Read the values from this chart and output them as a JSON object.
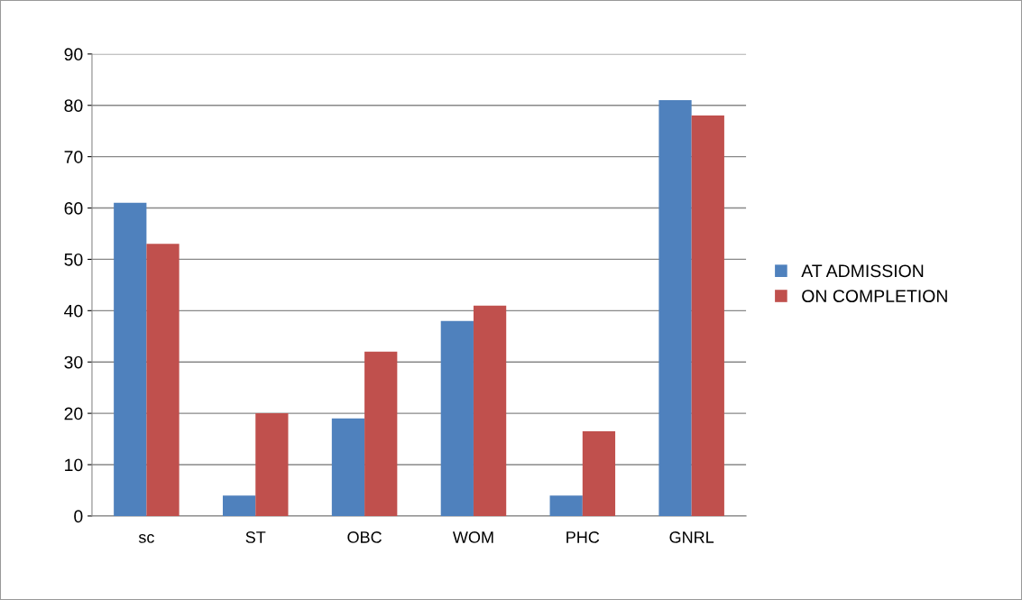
{
  "chart_data": {
    "type": "bar",
    "categories": [
      "sc",
      "ST",
      "OBC",
      "WOM",
      "PHC",
      "GNRL"
    ],
    "series": [
      {
        "name": "AT ADMISSION",
        "color": "#4f81bd",
        "values": [
          61,
          4,
          19,
          38,
          4,
          81
        ]
      },
      {
        "name": "ON COMPLETION",
        "color": "#c0504d",
        "values": [
          53,
          20,
          32,
          41,
          16.5,
          78
        ]
      }
    ],
    "ylim": [
      0,
      90
    ],
    "yticks": [
      0,
      10,
      20,
      30,
      40,
      50,
      60,
      70,
      80,
      90
    ],
    "grid": "y",
    "legend": "right"
  }
}
